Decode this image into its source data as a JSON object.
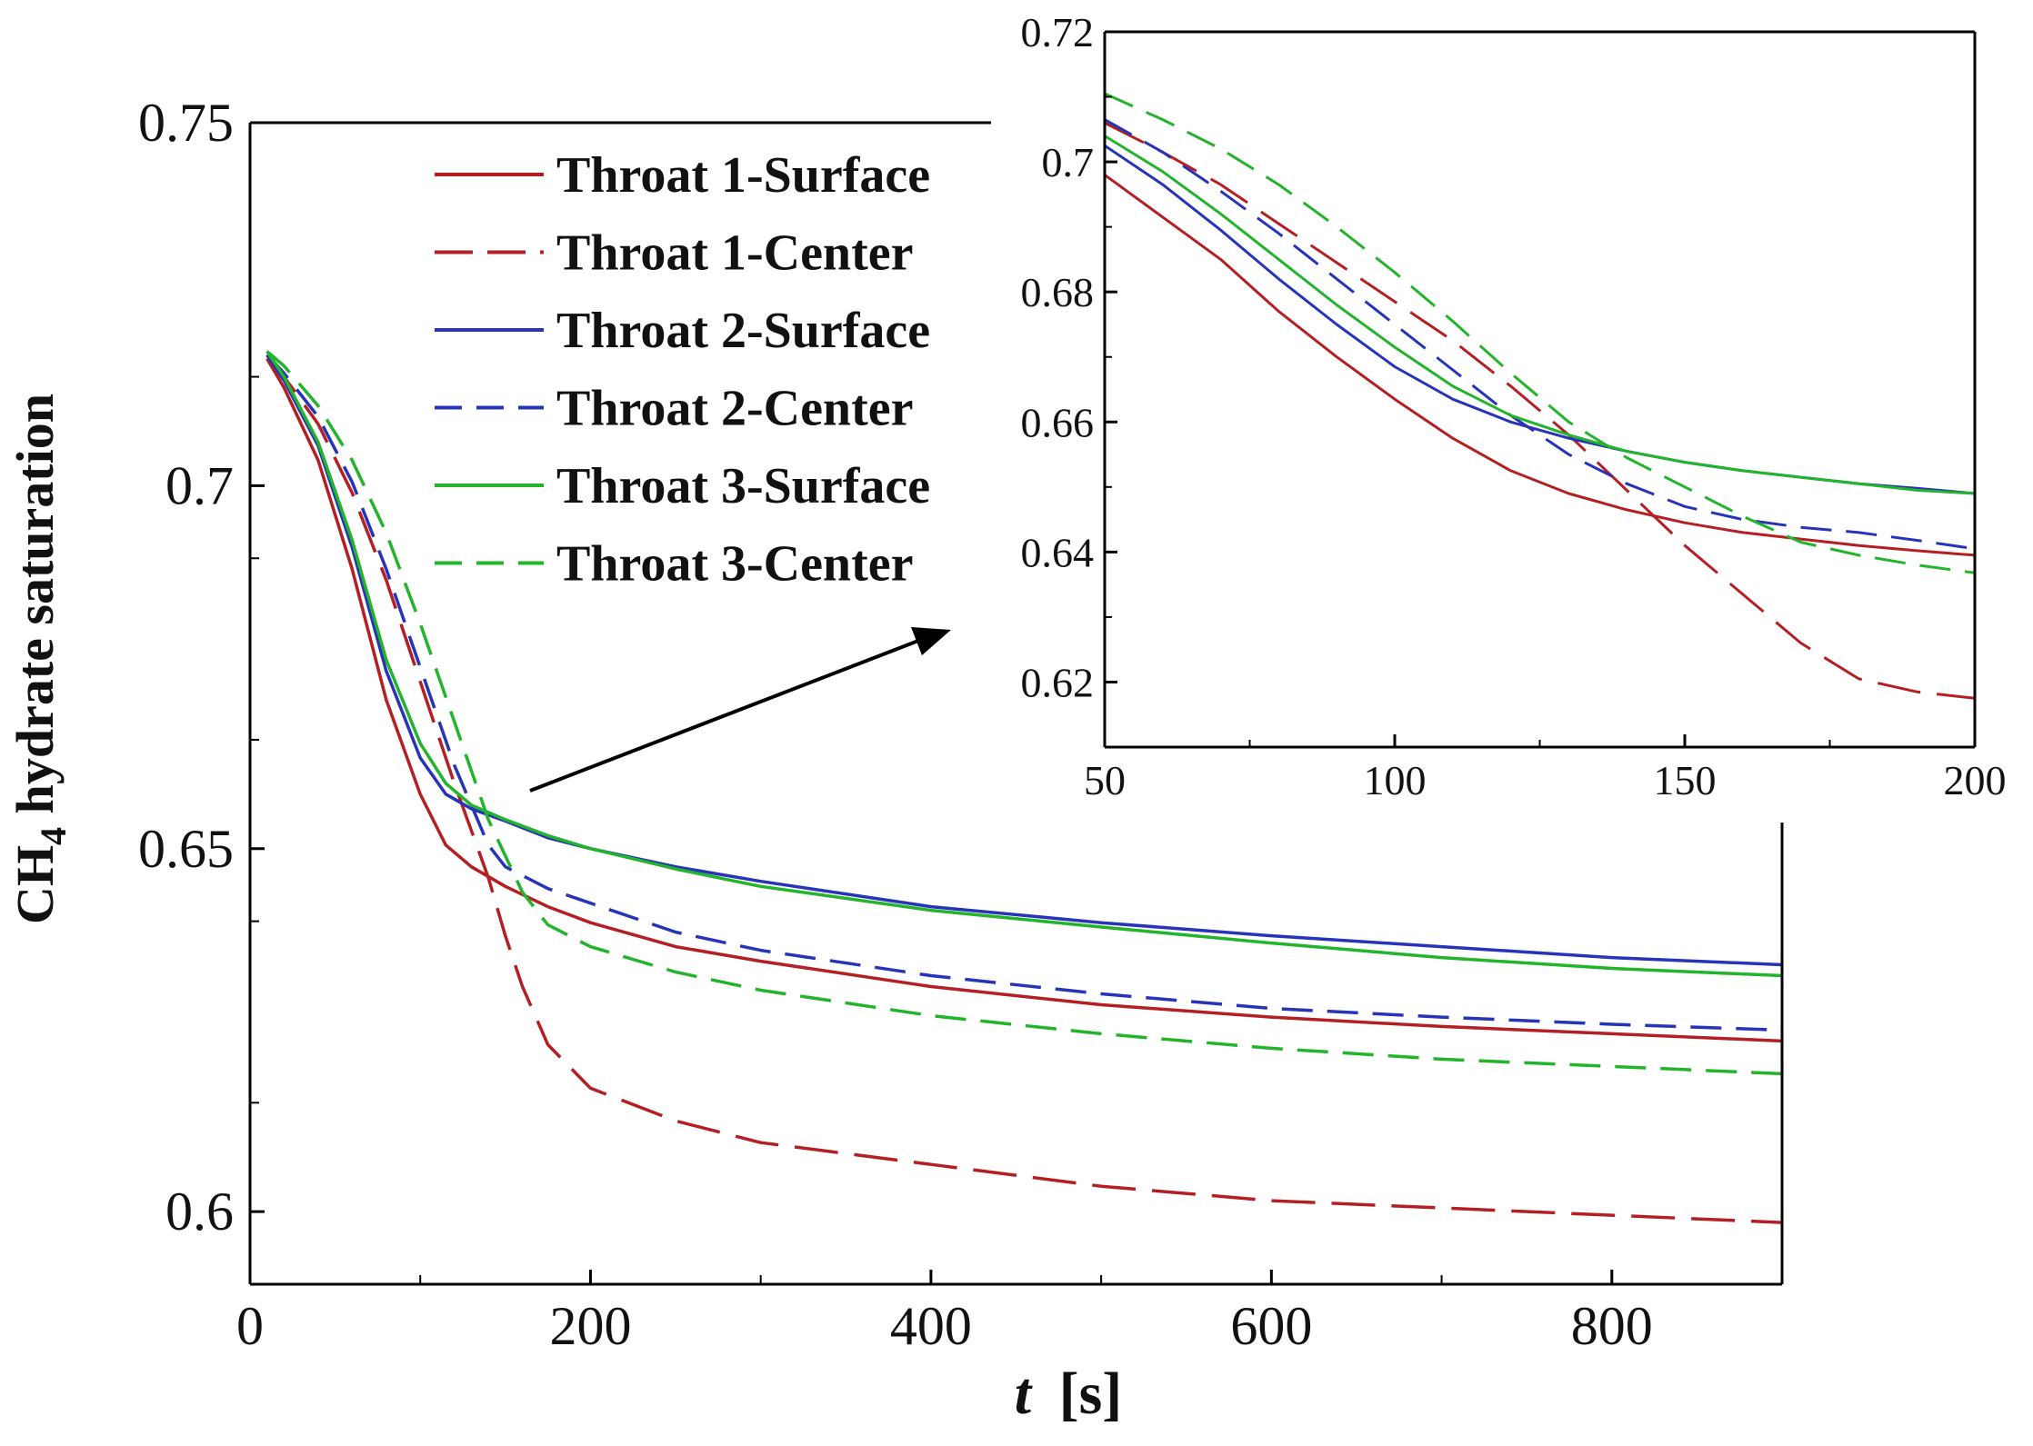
{
  "chart_data": [
    {
      "name": "main",
      "type": "line",
      "title": "",
      "xlabel": "t [s]",
      "xlabel_italic": "t",
      "xlabel_unit": "[s]",
      "ylabel": "CH4 hydrate saturation",
      "ylabel_prefix": "CH",
      "ylabel_subscript": "4",
      "ylabel_suffix": " hydrate saturation",
      "xlim": [
        0,
        900
      ],
      "ylim": [
        0.59,
        0.75
      ],
      "xticks": [
        0,
        200,
        400,
        600,
        800
      ],
      "xtick_labels": [
        "0",
        "200",
        "400",
        "600",
        "800"
      ],
      "yticks": [
        0.6,
        0.65,
        0.7,
        0.75
      ],
      "ytick_labels": [
        "0.6",
        "0.65",
        "0.7",
        "0.75"
      ],
      "legend": "top-left",
      "grid": false,
      "series": [
        {
          "name": "Throat 1-Surface",
          "color": "#b51f24",
          "dash": "solid",
          "x": [
            10,
            20,
            40,
            60,
            80,
            100,
            115,
            130,
            150,
            175,
            200,
            250,
            300,
            400,
            500,
            600,
            700,
            800,
            900
          ],
          "y": [
            0.7175,
            0.7135,
            0.7035,
            0.6885,
            0.6705,
            0.6575,
            0.6505,
            0.6475,
            0.6448,
            0.642,
            0.6398,
            0.6365,
            0.6345,
            0.631,
            0.6285,
            0.6268,
            0.6255,
            0.6245,
            0.6235
          ]
        },
        {
          "name": "Throat 1-Center",
          "color": "#b51f24",
          "dash": "long",
          "x": [
            10,
            20,
            40,
            60,
            80,
            100,
            120,
            140,
            150,
            160,
            175,
            200,
            250,
            300,
            400,
            500,
            600,
            700,
            800,
            900
          ],
          "y": [
            0.7175,
            0.715,
            0.7085,
            0.699,
            0.687,
            0.673,
            0.659,
            0.646,
            0.638,
            0.631,
            0.623,
            0.617,
            0.6125,
            0.6095,
            0.6065,
            0.6035,
            0.6015,
            0.6005,
            0.5995,
            0.5985
          ]
        },
        {
          "name": "Throat 2-Surface",
          "color": "#2733b8",
          "dash": "solid",
          "x": [
            10,
            20,
            40,
            60,
            80,
            100,
            115,
            130,
            150,
            175,
            200,
            250,
            300,
            400,
            500,
            600,
            700,
            800,
            900
          ],
          "y": [
            0.718,
            0.7145,
            0.7055,
            0.6915,
            0.6745,
            0.6625,
            0.6575,
            0.6555,
            0.6538,
            0.6515,
            0.65,
            0.6475,
            0.6455,
            0.642,
            0.6398,
            0.638,
            0.6365,
            0.635,
            0.634
          ]
        },
        {
          "name": "Throat 2-Center",
          "color": "#2733b8",
          "dash": "medium",
          "x": [
            10,
            20,
            40,
            60,
            80,
            100,
            120,
            140,
            150,
            175,
            200,
            250,
            300,
            400,
            500,
            600,
            700,
            800,
            900
          ],
          "y": [
            0.718,
            0.7155,
            0.7095,
            0.7005,
            0.6885,
            0.675,
            0.6615,
            0.6505,
            0.6475,
            0.6445,
            0.6425,
            0.6385,
            0.636,
            0.6325,
            0.63,
            0.628,
            0.6268,
            0.6258,
            0.625
          ]
        },
        {
          "name": "Throat 3-Surface",
          "color": "#22b42a",
          "dash": "solid",
          "x": [
            10,
            20,
            40,
            60,
            80,
            100,
            115,
            130,
            150,
            175,
            200,
            250,
            300,
            400,
            500,
            600,
            700,
            800,
            900
          ],
          "y": [
            0.7185,
            0.715,
            0.706,
            0.6925,
            0.676,
            0.6645,
            0.659,
            0.656,
            0.654,
            0.6518,
            0.65,
            0.6472,
            0.6448,
            0.6415,
            0.6392,
            0.637,
            0.635,
            0.6335,
            0.6325
          ]
        },
        {
          "name": "Throat 3-Center",
          "color": "#22b42a",
          "dash": "medium",
          "x": [
            10,
            20,
            40,
            60,
            80,
            100,
            120,
            140,
            160,
            175,
            200,
            250,
            300,
            400,
            500,
            600,
            700,
            800,
            900
          ],
          "y": [
            0.7185,
            0.7165,
            0.711,
            0.7035,
            0.6935,
            0.681,
            0.6675,
            0.654,
            0.644,
            0.6395,
            0.6365,
            0.633,
            0.6305,
            0.627,
            0.6245,
            0.6225,
            0.621,
            0.62,
            0.619
          ]
        }
      ]
    },
    {
      "name": "inset",
      "type": "line",
      "title": "",
      "xlabel": "",
      "ylabel": "",
      "xlim": [
        50,
        200
      ],
      "ylim": [
        0.61,
        0.72
      ],
      "xticks": [
        50,
        100,
        150,
        200
      ],
      "xtick_labels": [
        "50",
        "100",
        "150",
        "200"
      ],
      "yticks": [
        0.62,
        0.64,
        0.66,
        0.68,
        0.7,
        0.72
      ],
      "ytick_labels": [
        "0.62",
        "0.64",
        "0.66",
        "0.68",
        "0.7",
        "0.72"
      ],
      "grid": false,
      "series": [
        {
          "name": "Throat 1-Surface",
          "color": "#b51f24",
          "dash": "solid",
          "x": [
            50,
            60,
            70,
            80,
            90,
            100,
            110,
            120,
            130,
            140,
            150,
            160,
            170,
            180,
            190,
            200
          ],
          "y": [
            0.698,
            0.6915,
            0.685,
            0.677,
            0.67,
            0.6635,
            0.6575,
            0.6525,
            0.649,
            0.6465,
            0.6445,
            0.643,
            0.642,
            0.641,
            0.6402,
            0.6395
          ]
        },
        {
          "name": "Throat 1-Center",
          "color": "#b51f24",
          "dash": "long",
          "x": [
            50,
            60,
            70,
            80,
            90,
            100,
            110,
            120,
            130,
            140,
            150,
            160,
            170,
            180,
            190,
            200
          ],
          "y": [
            0.706,
            0.7015,
            0.6965,
            0.6905,
            0.6845,
            0.6785,
            0.6725,
            0.6655,
            0.658,
            0.6495,
            0.641,
            0.6335,
            0.626,
            0.6205,
            0.6185,
            0.6175
          ]
        },
        {
          "name": "Throat 2-Surface",
          "color": "#2733b8",
          "dash": "solid",
          "x": [
            50,
            60,
            70,
            80,
            90,
            100,
            110,
            120,
            130,
            140,
            150,
            160,
            170,
            180,
            190,
            200
          ],
          "y": [
            0.7025,
            0.6965,
            0.6895,
            0.682,
            0.675,
            0.6685,
            0.6635,
            0.66,
            0.6575,
            0.6555,
            0.6538,
            0.6525,
            0.6515,
            0.6505,
            0.6498,
            0.649
          ]
        },
        {
          "name": "Throat 2-Center",
          "color": "#2733b8",
          "dash": "medium",
          "x": [
            50,
            60,
            70,
            80,
            90,
            100,
            110,
            120,
            130,
            140,
            150,
            160,
            170,
            180,
            190,
            200
          ],
          "y": [
            0.7065,
            0.7015,
            0.6955,
            0.689,
            0.682,
            0.675,
            0.668,
            0.661,
            0.655,
            0.6505,
            0.647,
            0.645,
            0.6438,
            0.643,
            0.6418,
            0.6405
          ]
        },
        {
          "name": "Throat 3-Surface",
          "color": "#22b42a",
          "dash": "solid",
          "x": [
            50,
            60,
            70,
            80,
            90,
            100,
            110,
            120,
            130,
            140,
            150,
            160,
            170,
            180,
            190,
            200
          ],
          "y": [
            0.704,
            0.6985,
            0.692,
            0.685,
            0.678,
            0.6715,
            0.6655,
            0.661,
            0.658,
            0.6555,
            0.6538,
            0.6525,
            0.6515,
            0.6505,
            0.6495,
            0.649
          ]
        },
        {
          "name": "Throat 3-Center",
          "color": "#22b42a",
          "dash": "medium",
          "x": [
            50,
            60,
            70,
            80,
            90,
            100,
            110,
            120,
            130,
            140,
            150,
            160,
            170,
            180,
            190,
            200
          ],
          "y": [
            0.7105,
            0.7065,
            0.702,
            0.6965,
            0.69,
            0.683,
            0.6755,
            0.6675,
            0.66,
            0.6545,
            0.65,
            0.6455,
            0.6415,
            0.6395,
            0.638,
            0.6368
          ]
        }
      ]
    }
  ]
}
